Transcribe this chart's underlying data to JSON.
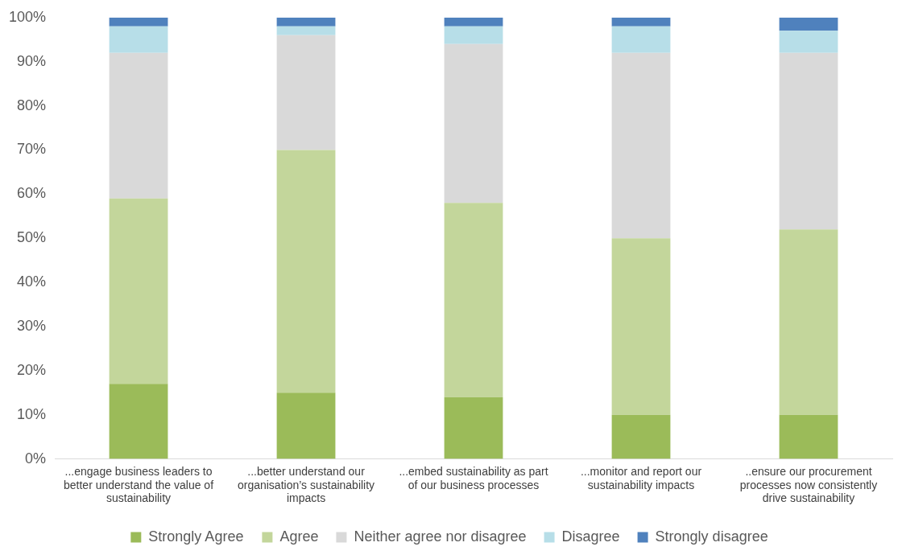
{
  "chart_data": {
    "type": "bar",
    "stacked": true,
    "categories": [
      "...engage business leaders to better understand the value of sustainability",
      "...better understand our organisation’s sustainability impacts",
      "...embed sustainability as part of our business processes",
      "...monitor and report our sustainability impacts",
      "..ensure our procurement processes now consistently drive sustainability"
    ],
    "series": [
      {
        "name": "Strongly Agree",
        "color": "#9bbb59",
        "values": [
          17,
          15,
          14,
          10,
          10
        ]
      },
      {
        "name": "Agree",
        "color": "#c3d69b",
        "values": [
          42,
          55,
          44,
          40,
          42
        ]
      },
      {
        "name": "Neither agree nor disagree",
        "color": "#d9d9d9",
        "values": [
          33,
          26,
          36,
          42,
          40
        ]
      },
      {
        "name": "Disagree",
        "color": "#b7dee8",
        "values": [
          6,
          2,
          4,
          6,
          5
        ]
      },
      {
        "name": "Strongly disagree",
        "color": "#4f81bd",
        "values": [
          2,
          2,
          2,
          2,
          3
        ]
      }
    ],
    "ylim": [
      0,
      100
    ],
    "yticks": [
      {
        "value": 0,
        "label": "0%"
      },
      {
        "value": 10,
        "label": "10%"
      },
      {
        "value": 20,
        "label": "20%"
      },
      {
        "value": 30,
        "label": "30%"
      },
      {
        "value": 40,
        "label": "40%"
      },
      {
        "value": 50,
        "label": "50%"
      },
      {
        "value": 60,
        "label": "60%"
      },
      {
        "value": 70,
        "label": "70%"
      },
      {
        "value": 80,
        "label": "80%"
      },
      {
        "value": 90,
        "label": "90%"
      },
      {
        "value": 100,
        "label": "100%"
      }
    ],
    "grid": false,
    "legend": "bottom"
  }
}
